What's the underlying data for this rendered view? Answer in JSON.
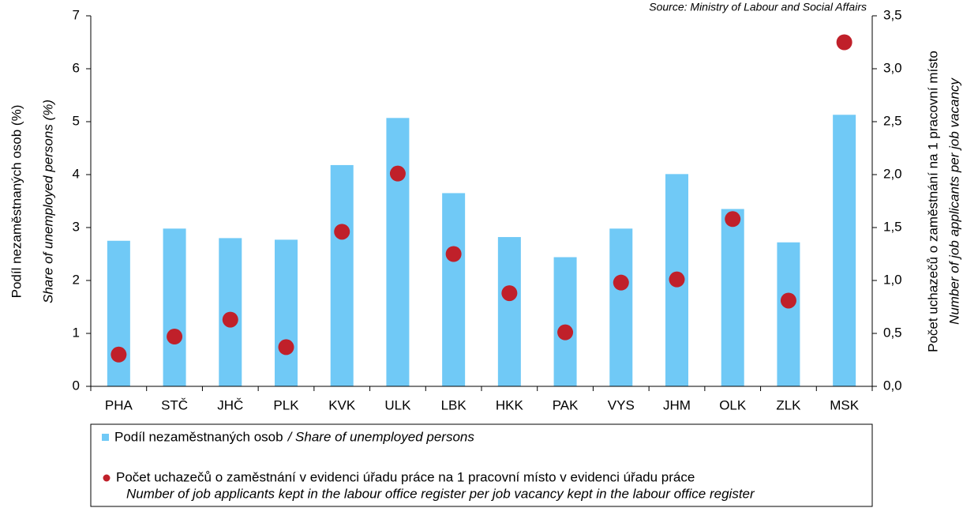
{
  "chart_data": {
    "type": "bar",
    "source": "Source: Ministry of Labour and Social Affairs",
    "ylabel": "Podíl nezaměstnaných osob (%)",
    "ylabel_en": "Share of unemployed persons (%)",
    "y2label": "Počet uchazečů o zaměstnání na 1 pracovní místo",
    "y2label_en": "Number of job applicants per job vacancy",
    "categories": [
      "PHA",
      "STČ",
      "JHČ",
      "PLK",
      "KVK",
      "ULK",
      "LBK",
      "HKK",
      "PAK",
      "VYS",
      "JHM",
      "OLK",
      "ZLK",
      "MSK"
    ],
    "series": [
      {
        "type": "bar",
        "name": "Podíl nezaměstnaných osob",
        "name_en": "/ Share of unemployed persons",
        "color": "#70c9f6",
        "values": [
          2.75,
          2.98,
          2.8,
          2.77,
          4.18,
          5.07,
          3.65,
          2.82,
          2.44,
          2.98,
          4.01,
          3.35,
          2.72,
          5.13
        ]
      },
      {
        "type": "scatter",
        "axis": "y2",
        "name": "Počet uchazečů o zaměstnání v evidenci úřadu práce na 1 pracovní místo v evidenci úřadu práce",
        "name_en": "Number of job applicants kept in the labour office register per job vacancy kept in the labour office register",
        "color": "#c0202a",
        "values": [
          0.3,
          0.47,
          0.63,
          0.37,
          1.46,
          2.01,
          1.25,
          0.88,
          0.51,
          0.98,
          1.01,
          1.58,
          0.81,
          3.25
        ]
      }
    ],
    "ylim": [
      0,
      7
    ],
    "yticks": [
      0,
      1,
      2,
      3,
      4,
      5,
      6,
      7
    ],
    "y2lim": [
      0,
      3.5
    ],
    "y2ticks": [
      {
        "value": 0,
        "label": "0,0"
      },
      {
        "value": 0.5,
        "label": "0,5"
      },
      {
        "value": 1,
        "label": "1,0"
      },
      {
        "value": 1.5,
        "label": "1,5"
      },
      {
        "value": 2,
        "label": "2,0"
      },
      {
        "value": 2.5,
        "label": "2,5"
      },
      {
        "value": 3,
        "label": "3,0"
      },
      {
        "value": 3.5,
        "label": "3,5"
      }
    ],
    "grid": false
  }
}
